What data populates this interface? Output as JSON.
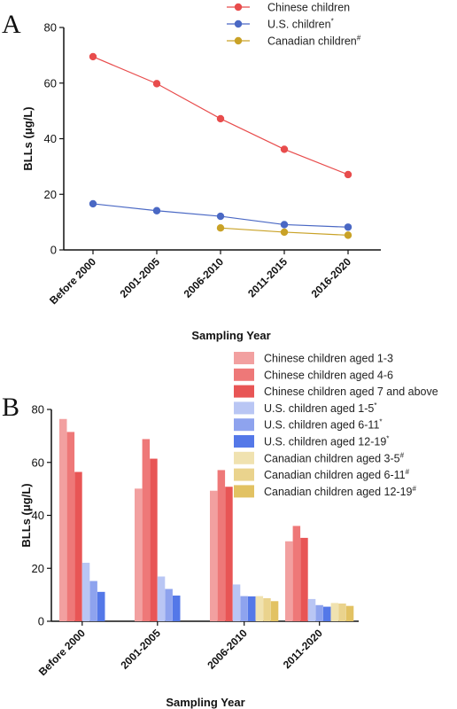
{
  "chart_data": [
    {
      "panel_label": "A",
      "type": "line",
      "xlabel": "Sampling Year",
      "ylabel": "BLLs (μg/L)",
      "ylim": [
        0,
        80
      ],
      "yticks": [
        0,
        20,
        40,
        60,
        80
      ],
      "categories": [
        "Before 2000",
        "2001-2005",
        "2006-2010",
        "2011-2015",
        "2016-2020"
      ],
      "legend_position": "top-right",
      "series": [
        {
          "name": "Chinese children",
          "sup": "",
          "color": "#e84c4c",
          "values": [
            69.5,
            59.8,
            47.2,
            36.2,
            27.1
          ]
        },
        {
          "name": "U.S. children",
          "sup": "*",
          "color": "#4a68c4",
          "values": [
            16.6,
            14.1,
            12.1,
            9.1,
            8.2
          ]
        },
        {
          "name": "Canadian children",
          "sup": "#",
          "color": "#c9a227",
          "values": [
            null,
            null,
            7.9,
            6.4,
            5.3
          ]
        }
      ]
    },
    {
      "panel_label": "B",
      "type": "bar",
      "xlabel": "Sampling Year",
      "ylabel": "BLLs (μg/L)",
      "ylim": [
        0,
        80
      ],
      "yticks": [
        0,
        20,
        40,
        60,
        80
      ],
      "categories": [
        "Before 2000",
        "2001-2005",
        "2006-2010",
        "2011-2020"
      ],
      "legend_position": "top-right",
      "series": [
        {
          "name": "Chinese children aged 1-3",
          "sup": "",
          "color": "#f2a0a0",
          "values": [
            76.4,
            50.1,
            49.3,
            30.2
          ]
        },
        {
          "name": "Chinese children aged 4-6",
          "sup": "",
          "color": "#ee7878",
          "values": [
            71.5,
            68.8,
            57.1,
            36.0
          ]
        },
        {
          "name": "Chinese children aged 7 and above",
          "sup": "",
          "color": "#e85555",
          "values": [
            56.4,
            61.4,
            50.8,
            31.5
          ]
        },
        {
          "name": "U.S. children aged 1-5",
          "sup": "*",
          "color": "#b9c6f4",
          "values": [
            22.1,
            16.9,
            13.9,
            8.4
          ]
        },
        {
          "name": "U.S. children aged 6-11",
          "sup": "*",
          "color": "#8ea3ee",
          "values": [
            15.2,
            12.2,
            9.5,
            6.1
          ]
        },
        {
          "name": "U.S. children aged 12-19",
          "sup": "*",
          "color": "#5478e8",
          "values": [
            11.1,
            9.7,
            9.4,
            5.5
          ]
        },
        {
          "name": "Canadian children aged 3-5",
          "sup": "#",
          "color": "#f0e2b0",
          "values": [
            null,
            null,
            9.5,
            6.9
          ]
        },
        {
          "name": "Canadian children aged 6-11",
          "sup": "#",
          "color": "#ead38d",
          "values": [
            null,
            null,
            8.7,
            6.7
          ]
        },
        {
          "name": "Canadian children aged 12-19",
          "sup": "#",
          "color": "#e2c263",
          "values": [
            null,
            null,
            7.6,
            5.8
          ]
        }
      ]
    }
  ]
}
